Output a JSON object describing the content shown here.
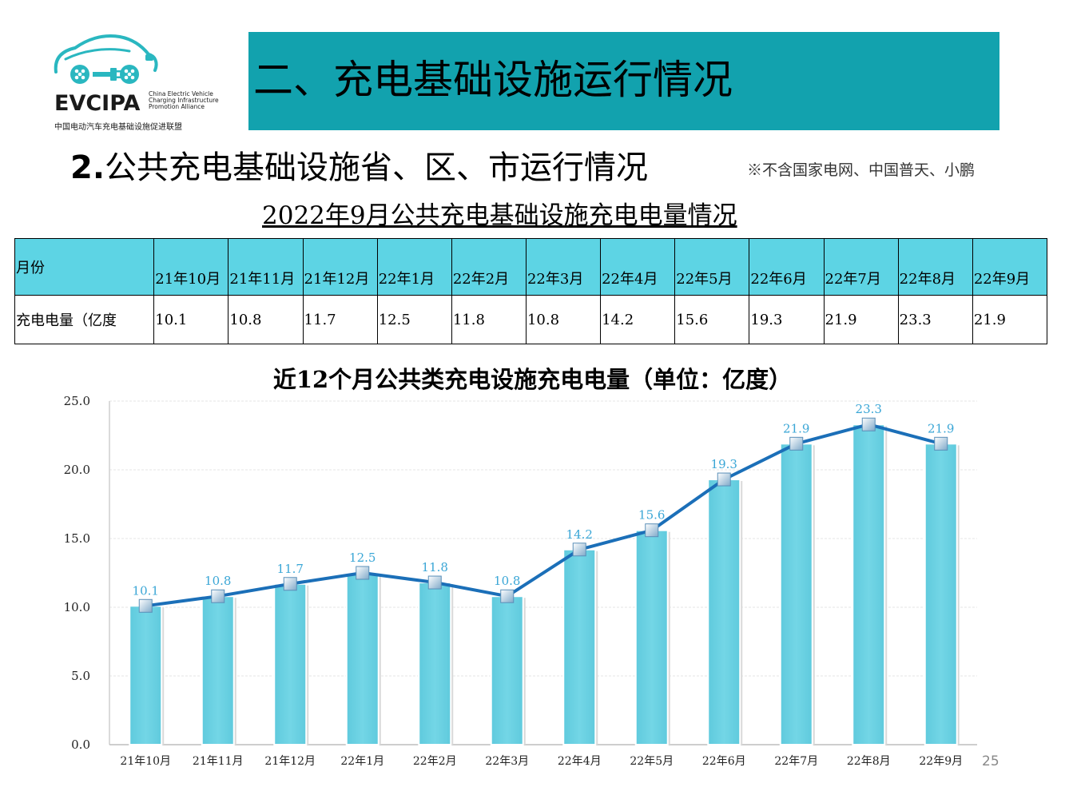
{
  "logo": {
    "brand": "EVCIPA",
    "en_lines": [
      "China Electric Vehicle",
      "Charging Infrastructure",
      "Promotion Alliance"
    ],
    "cn": "中国电动汽车充电基础设施促进联盟",
    "color": "#2ab7c0"
  },
  "header": {
    "title": "二、充电基础设施运行情况",
    "background": "#12a2ae"
  },
  "subtitle": {
    "number": "2.",
    "text": "公共充电基础设施省、区、市运行情况"
  },
  "note": "※不含国家电网、中国普天、小鹏",
  "table": {
    "title": "2022年9月公共充电基础设施充电电量情况",
    "row_label_month": "月份",
    "row_label_value": "充电电量（亿度",
    "months": [
      "21年10月",
      "21年11月",
      "21年12月",
      "22年1月",
      "22年2月",
      "22年3月",
      "22年4月",
      "22年5月",
      "22年6月",
      "22年7月",
      "22年8月",
      "22年9月"
    ],
    "values": [
      "10.1",
      "10.8",
      "11.7",
      "12.5",
      "11.8",
      "10.8",
      "14.2",
      "15.6",
      "19.3",
      "21.9",
      "23.3",
      "21.9"
    ],
    "header_color": "#5dd4e4"
  },
  "chart_data": {
    "type": "bar",
    "title": "近12个月公共类充电设施充电电量（单位：亿度）",
    "categories": [
      "21年10月",
      "21年11月",
      "21年12月",
      "22年1月",
      "22年2月",
      "22年3月",
      "22年4月",
      "22年5月",
      "22年6月",
      "22年7月",
      "22年8月",
      "22年9月"
    ],
    "values": [
      10.1,
      10.8,
      11.7,
      12.5,
      11.8,
      10.8,
      14.2,
      15.6,
      19.3,
      21.9,
      23.3,
      21.9
    ],
    "value_labels": [
      "10.1",
      "10.8",
      "11.7",
      "12.5",
      "11.8",
      "10.8",
      "14.2",
      "15.6",
      "19.3",
      "21.9",
      "23.3",
      "21.9"
    ],
    "overlay": "line",
    "ylim": [
      0,
      25
    ],
    "yticks": [
      "0.0",
      "5.0",
      "10.0",
      "15.0",
      "20.0",
      "25.0"
    ],
    "grid": true,
    "bar_color": "#73d6e6",
    "line_color": "#1b6fb8",
    "label_color": "#3aa6d6"
  },
  "page_number": "25"
}
